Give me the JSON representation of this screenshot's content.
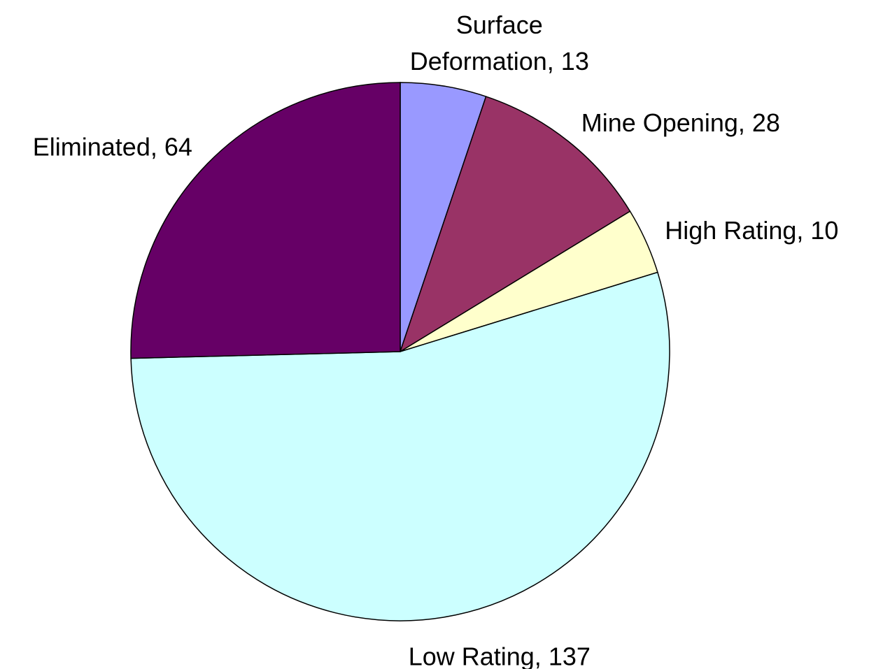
{
  "chart_data": {
    "type": "pie",
    "values": [
      13,
      28,
      10,
      137,
      64
    ],
    "value_labels": [
      "Surface Deformation, 13",
      "Mine Opening, 28",
      "High Rating, 10",
      "Low Rating, 137",
      "Eliminated, 64"
    ],
    "colors": [
      "#9999ff",
      "#993366",
      "#ffffcc",
      "#ccffff",
      "#660066"
    ]
  }
}
